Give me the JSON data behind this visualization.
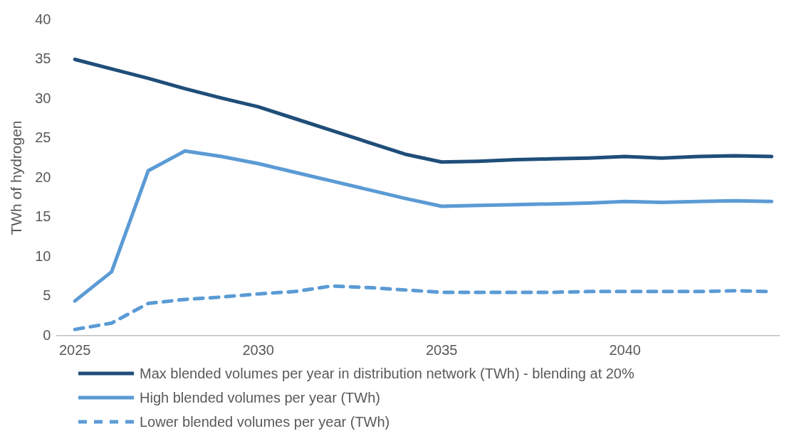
{
  "chart_data": {
    "type": "line",
    "ylabel": "TWh of hydrogen",
    "x": [
      2025,
      2026,
      2027,
      2028,
      2029,
      2030,
      2031,
      2032,
      2033,
      2034,
      2035,
      2036,
      2037,
      2038,
      2039,
      2040,
      2041,
      2042,
      2043,
      2044
    ],
    "xlim": [
      2024.5,
      2044.2
    ],
    "xticks": [
      2025,
      2030,
      2035,
      2040
    ],
    "ylim": [
      0,
      40
    ],
    "yticks": [
      0,
      5,
      10,
      15,
      20,
      25,
      30,
      35,
      40
    ],
    "grid": false,
    "legend": "bottom",
    "marker": "none",
    "series": [
      {
        "name": "Max blended volumes per year in distribution network (TWh) - blending at 20%",
        "color": "#1f4e79",
        "line_style": "solid",
        "values": [
          35,
          33.8,
          32.6,
          31.3,
          30.1,
          29,
          27.5,
          26,
          24.5,
          23,
          22,
          22.1,
          22.3,
          22.4,
          22.5,
          22.7,
          22.5,
          22.7,
          22.8,
          22.7
        ]
      },
      {
        "name": "High blended volumes per year (TWh)",
        "color": "#5b9bd5",
        "line_style": "solid",
        "values": [
          4.4,
          8.1,
          20.9,
          23.4,
          22.7,
          21.8,
          20.7,
          19.6,
          18.5,
          17.4,
          16.4,
          16.5,
          16.6,
          16.7,
          16.8,
          17,
          16.9,
          17,
          17.1,
          17
        ]
      },
      {
        "name": "Lower blended volumes per year (TWh)",
        "color": "#5b9bd5",
        "line_style": "dashed",
        "values": [
          0.8,
          1.6,
          4.1,
          4.6,
          4.9,
          5.3,
          5.6,
          6.3,
          6.1,
          5.8,
          5.5,
          5.5,
          5.5,
          5.5,
          5.6,
          5.6,
          5.6,
          5.6,
          5.7,
          5.6
        ]
      }
    ]
  }
}
